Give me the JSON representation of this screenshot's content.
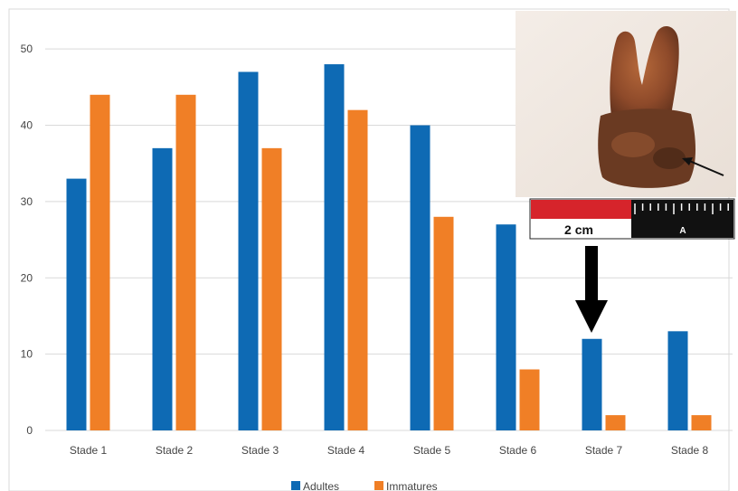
{
  "chart_data": {
    "type": "bar",
    "categories": [
      "Stade 1",
      "Stade 2",
      "Stade 3",
      "Stade 4",
      "Stade 5",
      "Stade 6",
      "Stade 7",
      "Stade 8"
    ],
    "series": [
      {
        "name": "Adultes",
        "values": [
          33,
          37,
          47,
          48,
          40,
          27,
          12,
          13
        ],
        "color": "#0e6ab4"
      },
      {
        "name": "Immatures",
        "values": [
          44,
          44,
          37,
          42,
          28,
          8,
          2,
          2
        ],
        "color": "#f07f26"
      }
    ],
    "ylim": [
      0,
      55
    ],
    "yticks": [
      0,
      10,
      20,
      30,
      40,
      50
    ],
    "grid": true,
    "legend_position": "bottom-center"
  },
  "inset": {
    "subject": "tooth-photo",
    "scale_label": "2 cm",
    "scale_letter": "A"
  },
  "annotation": {
    "arrow_target": "Stade 7",
    "arrow_color": "#000000"
  }
}
